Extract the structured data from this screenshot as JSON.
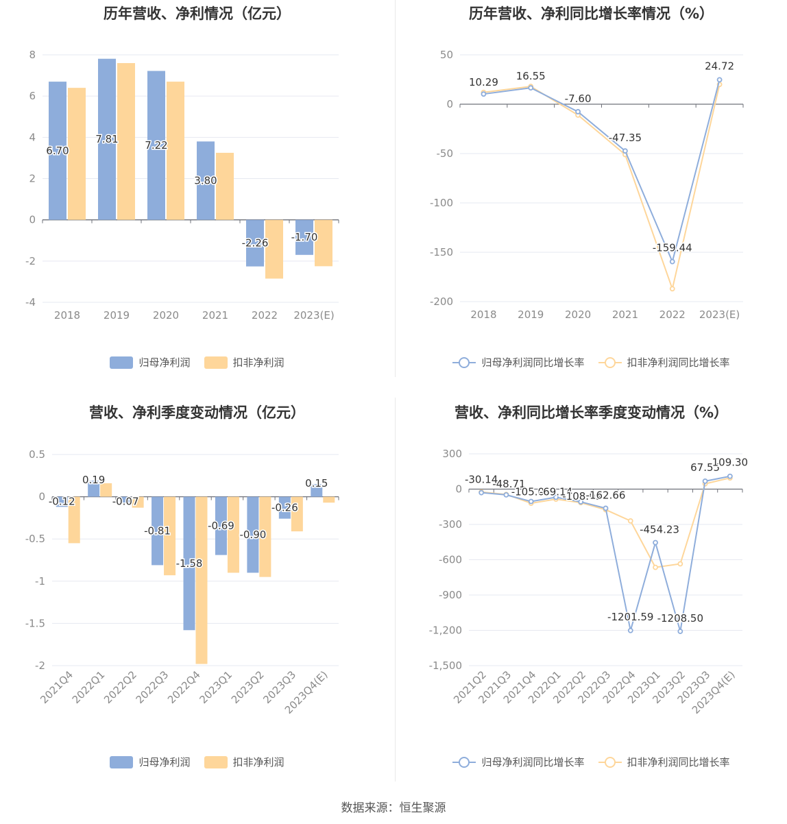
{
  "footer": {
    "source": "数据来源：恒生聚源"
  },
  "colors": {
    "primary": "#8eaddb",
    "secondary": "#fed69a",
    "grid": "#e6e8f0",
    "axis": "#6e7079"
  },
  "legend_bar": {
    "a": "归母净利润",
    "b": "扣非净利润"
  },
  "legend_line": {
    "a": "归母净利润同比增长率",
    "b": "扣非净利润同比增长率"
  },
  "chart_data": [
    {
      "type": "bar",
      "title": "历年营收、净利情况（亿元）",
      "categories": [
        "2018",
        "2019",
        "2020",
        "2021",
        "2022",
        "2023(E)"
      ],
      "series": [
        {
          "name": "归母净利润",
          "values": [
            6.7,
            7.81,
            7.22,
            3.8,
            -2.26,
            -1.7
          ],
          "labels": [
            "6.70",
            "7.81",
            "7.22",
            "3.80",
            "-2.26",
            "-1.70"
          ]
        },
        {
          "name": "扣非净利润",
          "values": [
            6.4,
            7.6,
            6.7,
            3.25,
            -2.85,
            -2.25
          ]
        }
      ],
      "yticks": [
        "-4",
        "-2",
        "0",
        "2",
        "4",
        "6",
        "8"
      ],
      "ylim": [
        -4,
        8
      ]
    },
    {
      "type": "line",
      "title": "历年营收、净利同比增长率情况（%）",
      "categories": [
        "2018",
        "2019",
        "2020",
        "2021",
        "2022",
        "2023(E)"
      ],
      "series": [
        {
          "name": "归母净利润同比增长率",
          "values": [
            10.29,
            16.55,
            -7.6,
            -47.35,
            -159.44,
            24.72
          ],
          "labels": [
            "10.29",
            "16.55",
            "-7.60",
            "-47.35",
            "-159.44",
            "24.72"
          ]
        },
        {
          "name": "扣非净利润同比增长率",
          "values": [
            12,
            18,
            -11,
            -51,
            -187,
            20
          ]
        }
      ],
      "yticks": [
        "-200",
        "-150",
        "-100",
        "-50",
        "0",
        "50"
      ],
      "ylim": [
        -200,
        50
      ]
    },
    {
      "type": "bar",
      "title": "营收、净利季度变动情况（亿元）",
      "categories": [
        "2021Q4",
        "2022Q1",
        "2022Q2",
        "2022Q3",
        "2022Q4",
        "2023Q1",
        "2023Q2",
        "2023Q3",
        "2023Q4(E)"
      ],
      "series": [
        {
          "name": "归母净利润",
          "values": [
            -0.12,
            0.19,
            -0.07,
            -0.81,
            -1.58,
            -0.69,
            -0.9,
            -0.26,
            0.15
          ],
          "labels": [
            "-0.12",
            "0.19",
            "-0.07",
            "-0.81",
            "-1.58",
            "-0.69",
            "-0.90",
            "-0.26",
            "0.15"
          ]
        },
        {
          "name": "扣非净利润",
          "values": [
            -0.55,
            0.16,
            -0.13,
            -0.93,
            -1.98,
            -0.9,
            -0.95,
            -0.41,
            -0.07
          ]
        }
      ],
      "yticks": [
        "-2",
        "-1.5",
        "-1",
        "-0.5",
        "0",
        "0.5"
      ],
      "ylim": [
        -2,
        0.5
      ]
    },
    {
      "type": "line",
      "title": "营收、净利同比增长率季度变动情况（%）",
      "categories": [
        "2021Q2",
        "2021Q3",
        "2021Q4",
        "2022Q1",
        "2022Q2",
        "2022Q3",
        "2022Q4",
        "2023Q1",
        "2023Q2",
        "2023Q3",
        "2023Q4(E)"
      ],
      "series": [
        {
          "name": "归母净利润同比增长率",
          "values": [
            -30.14,
            -48.71,
            -105.0,
            -69.14,
            -108.09,
            -162.66,
            -1201.59,
            -454.23,
            -1208.5,
            67.55,
            109.3
          ],
          "labels": [
            "-30.14",
            "-48.71",
            "-105.00",
            "-69.14",
            "-108.09",
            "-162.66",
            "-1201.59",
            "-454.23",
            "-1208.50",
            "67.55",
            "109.30"
          ]
        },
        {
          "name": "扣非净利润同比增长率",
          "values": [
            -25,
            -45,
            -120,
            -85,
            -115,
            -175,
            -270,
            -665,
            -635,
            45,
            95
          ]
        }
      ],
      "yticks": [
        "-1,500",
        "-1,200",
        "-900",
        "-600",
        "-300",
        "0",
        "300"
      ],
      "ylim": [
        -1500,
        300
      ]
    }
  ]
}
